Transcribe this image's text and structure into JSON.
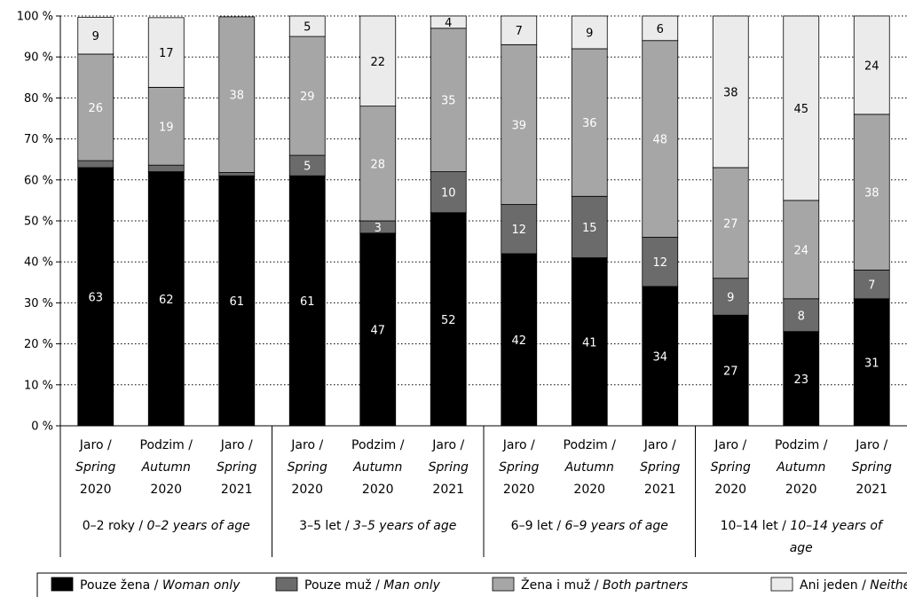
{
  "chart_data": {
    "type": "bar",
    "stacked": true,
    "percent_stacked": true,
    "ylim": [
      0,
      100
    ],
    "y_ticks": [
      "0 %",
      "10 %",
      "20 %",
      "30 %",
      "40 %",
      "50 %",
      "60 %",
      "70 %",
      "80 %",
      "90 %",
      "100 %"
    ],
    "grid": "horizontal dotted",
    "legend_position": "bottom",
    "groups": [
      {
        "label_cz": "0–2 roky / ",
        "label_en": "0–2 years of age",
        "label_en2": ""
      },
      {
        "label_cz": "3–5 let / ",
        "label_en": "3–5 years of age",
        "label_en2": ""
      },
      {
        "label_cz": "6–9 let / ",
        "label_en": "6–9 years of age",
        "label_en2": ""
      },
      {
        "label_cz": "10–14 let / ",
        "label_en": "10–14 years of",
        "label_en2": "age"
      }
    ],
    "categories": [
      {
        "cz": "Jaro /",
        "en": "Spring",
        "year": "2020"
      },
      {
        "cz": "Podzim /",
        "en": "Autumn",
        "year": "2020"
      },
      {
        "cz": "Jaro /",
        "en": "Spring",
        "year": "2021"
      },
      {
        "cz": "Jaro /",
        "en": "Spring",
        "year": "2020"
      },
      {
        "cz": "Podzim /",
        "en": "Autumn",
        "year": "2020"
      },
      {
        "cz": "Jaro /",
        "en": "Spring",
        "year": "2021"
      },
      {
        "cz": "Jaro /",
        "en": "Spring",
        "year": "2020"
      },
      {
        "cz": "Podzim /",
        "en": "Autumn",
        "year": "2020"
      },
      {
        "cz": "Jaro /",
        "en": "Spring",
        "year": "2021"
      },
      {
        "cz": "Jaro /",
        "en": "Spring",
        "year": "2020"
      },
      {
        "cz": "Podzim /",
        "en": "Autumn",
        "year": "2020"
      },
      {
        "cz": "Jaro /",
        "en": "Spring",
        "year": "2021"
      }
    ],
    "series": [
      {
        "name_cz": "Pouze žena / ",
        "name_en": "Woman only",
        "color": "#000000",
        "label_color": "#ffffff",
        "values": [
          63,
          62,
          61,
          61,
          47,
          52,
          42,
          41,
          34,
          27,
          23,
          31
        ]
      },
      {
        "name_cz": "Pouze muž / ",
        "name_en": "Man only",
        "color": "#6b6b6b",
        "label_color": "#ffffff",
        "values": [
          1.7,
          1.6,
          0.8,
          5,
          3,
          10,
          12,
          15,
          12,
          9,
          8,
          7
        ],
        "shown_labels": [
          "",
          "",
          "",
          "5",
          "3",
          "10",
          "12",
          "15",
          "12",
          "9",
          "8",
          "7"
        ]
      },
      {
        "name_cz": "Žena i muž / ",
        "name_en": "Both partners",
        "color": "#a6a6a6",
        "label_color": "#ffffff",
        "values": [
          26,
          19,
          38,
          29,
          28,
          35,
          39,
          36,
          48,
          27,
          24,
          38
        ],
        "shown_labels": [
          "26",
          "19",
          "38",
          "29",
          "28",
          "35",
          "39",
          "36",
          "48",
          "27",
          "24",
          "38"
        ]
      },
      {
        "name_cz": "Ani jeden / ",
        "name_en": "Neither partner",
        "color": "#ebebeb",
        "label_color": "#000000",
        "values": [
          9,
          17,
          0,
          5,
          22,
          4,
          7,
          9,
          6,
          38,
          45,
          24
        ],
        "shown_labels": [
          "9",
          "17",
          "",
          "5",
          "22",
          "4",
          "7",
          "9",
          "6",
          "38",
          "45",
          "24"
        ]
      }
    ]
  }
}
